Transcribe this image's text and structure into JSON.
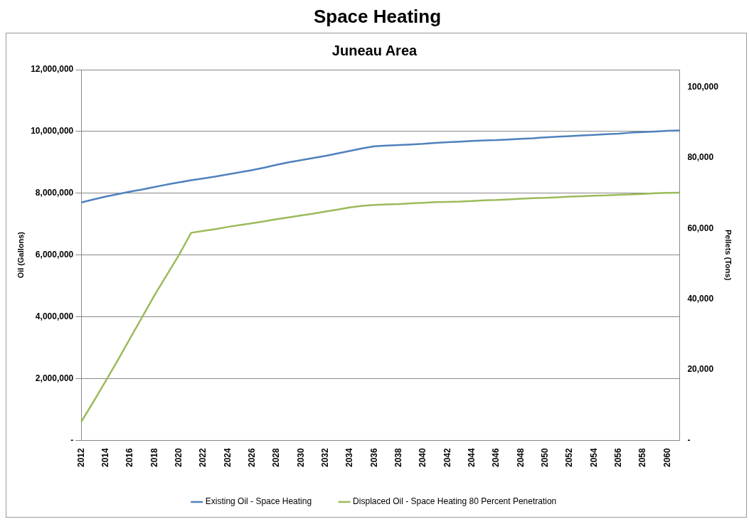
{
  "chart_data": {
    "type": "line",
    "title": "Space Heating",
    "subtitle": "Juneau Area",
    "ylabel": "Oil (Gallons)",
    "y2label": "Pellets (Tons)",
    "categories": [
      "2012",
      null,
      "2014",
      null,
      "2016",
      null,
      "2018",
      null,
      "2020",
      null,
      "2022",
      null,
      "2024",
      null,
      "2026",
      null,
      "2028",
      null,
      "2030",
      null,
      "2032",
      null,
      "2034",
      null,
      "2036",
      null,
      "2038",
      null,
      "2040",
      null,
      "2042",
      null,
      "2044",
      null,
      "2046",
      null,
      "2048",
      null,
      "2050",
      null,
      "2052",
      null,
      "2054",
      null,
      "2056",
      null,
      "2058",
      null,
      "2060",
      null
    ],
    "series": [
      {
        "name": "Existing Oil - Space Heating",
        "color": "#4f81bd",
        "values": [
          7700000,
          7800000,
          7890000,
          7970000,
          8050000,
          8120000,
          8200000,
          8280000,
          8350000,
          8420000,
          8480000,
          8540000,
          8610000,
          8680000,
          8750000,
          8830000,
          8920000,
          9000000,
          9070000,
          9140000,
          9210000,
          9290000,
          9370000,
          9450000,
          9520000,
          9540000,
          9560000,
          9580000,
          9600000,
          9630000,
          9650000,
          9670000,
          9690000,
          9710000,
          9720000,
          9740000,
          9760000,
          9780000,
          9810000,
          9830000,
          9850000,
          9870000,
          9890000,
          9910000,
          9930000,
          9960000,
          9980000,
          10000000,
          10020000,
          10030000
        ]
      },
      {
        "name": "Displaced Oil - Space Heating 80 Percent Penetration",
        "color": "#9bbb59",
        "values": [
          600000,
          1250000,
          1920000,
          2600000,
          3300000,
          4000000,
          4700000,
          5350000,
          6000000,
          6720000,
          6780000,
          6840000,
          6910000,
          6970000,
          7030000,
          7090000,
          7160000,
          7220000,
          7280000,
          7340000,
          7410000,
          7470000,
          7540000,
          7590000,
          7620000,
          7640000,
          7650000,
          7670000,
          7690000,
          7710000,
          7720000,
          7730000,
          7750000,
          7770000,
          7780000,
          7800000,
          7820000,
          7840000,
          7850000,
          7870000,
          7890000,
          7900000,
          7920000,
          7930000,
          7950000,
          7960000,
          7980000,
          8000000,
          8010000,
          8020000
        ]
      }
    ],
    "ylim": [
      0,
      12000000
    ],
    "yticks": [
      {
        "value": 0,
        "label": "-"
      },
      {
        "value": 2000000,
        "label": "2,000,000"
      },
      {
        "value": 4000000,
        "label": "4,000,000"
      },
      {
        "value": 6000000,
        "label": "6,000,000"
      },
      {
        "value": 8000000,
        "label": "8,000,000"
      },
      {
        "value": 10000000,
        "label": "10,000,000"
      },
      {
        "value": 12000000,
        "label": "12,000,000"
      }
    ],
    "y2lim": [
      0,
      105000
    ],
    "y2ticks": [
      {
        "value": 0,
        "label": "-"
      },
      {
        "value": 20000,
        "label": "20,000"
      },
      {
        "value": 40000,
        "label": "40,000"
      },
      {
        "value": 60000,
        "label": "60,000"
      },
      {
        "value": 80000,
        "label": "80,000"
      },
      {
        "value": 100000,
        "label": "100,000"
      }
    ],
    "grid": "y",
    "legend": "bottom"
  }
}
